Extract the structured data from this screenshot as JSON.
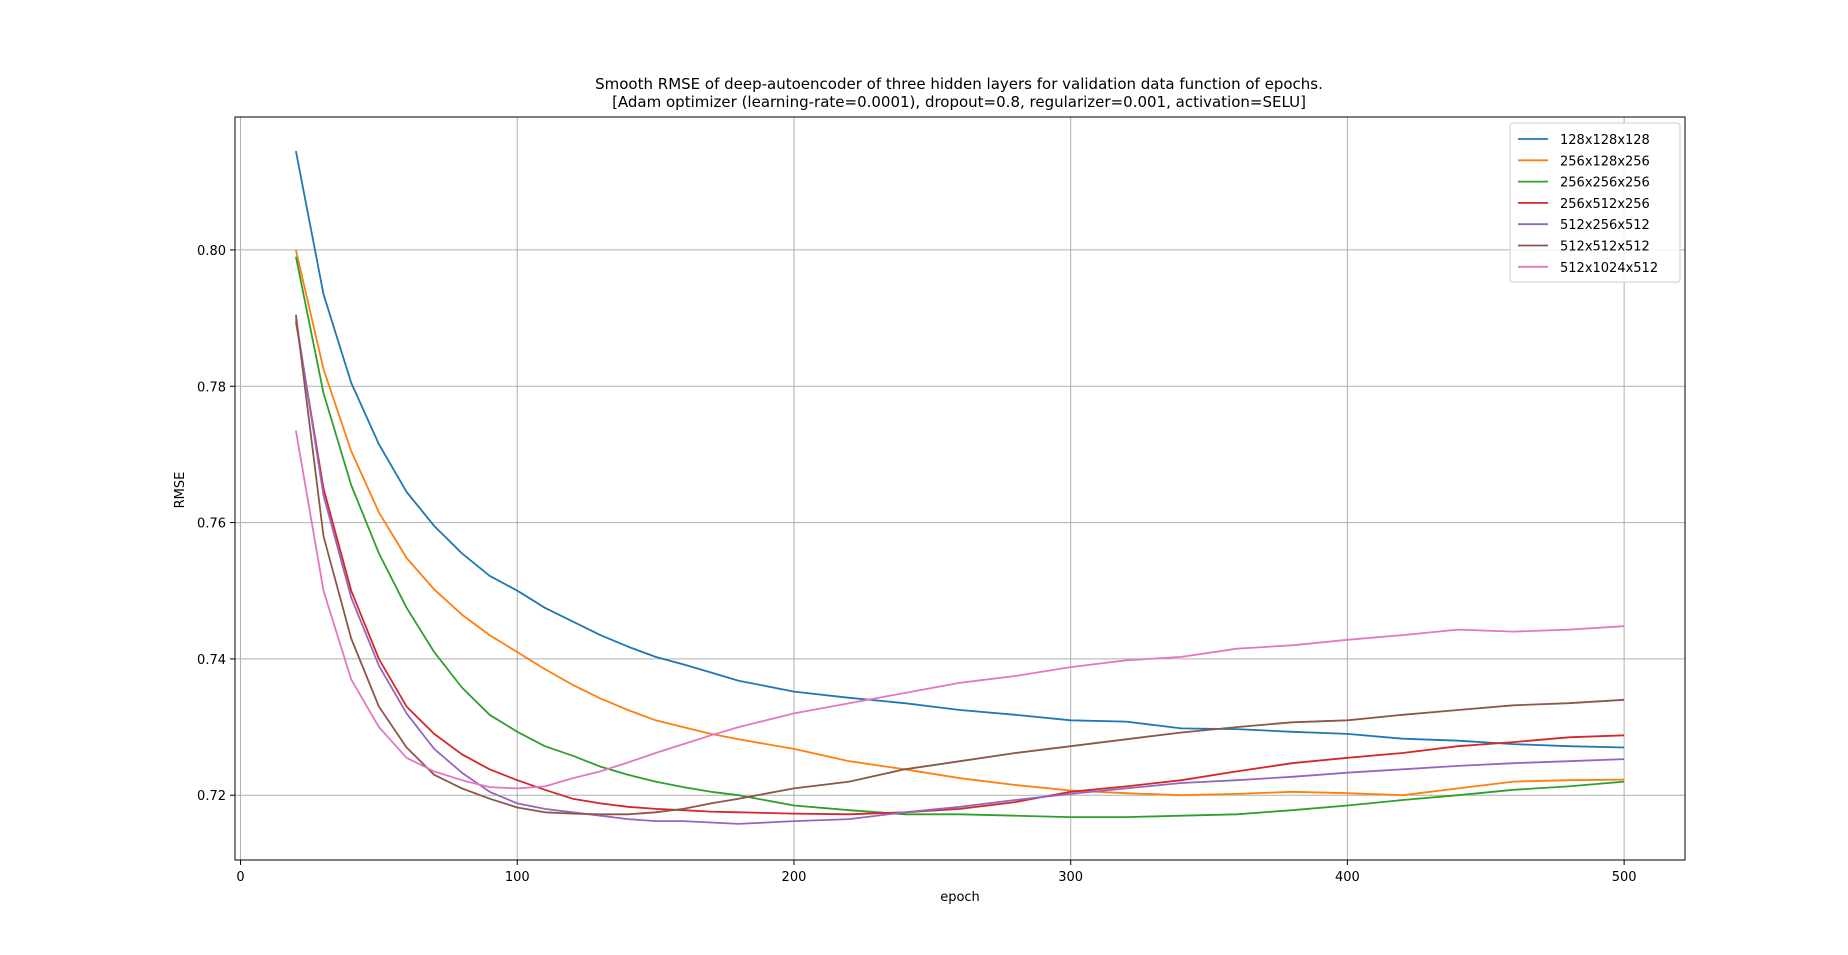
{
  "chart_data": {
    "type": "line",
    "title": "Smooth RMSE of deep-autoencoder of three hidden layers for validation data function of epochs.",
    "subtitle": "[Adam optimizer (learning-rate=0.0001), dropout=0.8, regularizer=0.001, activation=SELU]",
    "xlabel": "epoch",
    "ylabel": "RMSE",
    "xlim": [
      -2,
      522
    ],
    "ylim": [
      0.7105,
      0.8195
    ],
    "xticks": [
      0,
      100,
      200,
      300,
      400,
      500
    ],
    "yticks": [
      0.72,
      0.74,
      0.76,
      0.78,
      0.8
    ],
    "ytick_labels": [
      "0.72",
      "0.74",
      "0.76",
      "0.78",
      "0.80"
    ],
    "grid": true,
    "legend_position": "top-right",
    "series": [
      {
        "name": "128x128x128",
        "color": "#1f77b4",
        "x": [
          20,
          30,
          40,
          50,
          60,
          70,
          80,
          90,
          100,
          110,
          120,
          130,
          140,
          150,
          160,
          170,
          180,
          200,
          220,
          240,
          260,
          280,
          300,
          320,
          340,
          360,
          380,
          400,
          420,
          440,
          460,
          480,
          500
        ],
        "y": [
          0.8145,
          0.7935,
          0.7805,
          0.7715,
          0.7645,
          0.7595,
          0.7555,
          0.7522,
          0.75,
          0.7475,
          0.7455,
          0.7435,
          0.7418,
          0.7403,
          0.7392,
          0.738,
          0.7368,
          0.7352,
          0.7343,
          0.7335,
          0.7325,
          0.7318,
          0.731,
          0.7308,
          0.7298,
          0.7297,
          0.7293,
          0.729,
          0.7283,
          0.728,
          0.7275,
          0.7272,
          0.727
        ]
      },
      {
        "name": "256x128x256",
        "color": "#ff7f0e",
        "x": [
          20,
          30,
          40,
          50,
          60,
          70,
          80,
          90,
          100,
          110,
          120,
          130,
          140,
          150,
          160,
          170,
          180,
          200,
          220,
          240,
          260,
          280,
          300,
          320,
          340,
          360,
          380,
          400,
          420,
          440,
          460,
          480,
          500
        ],
        "y": [
          0.8,
          0.7825,
          0.7705,
          0.7615,
          0.7548,
          0.7502,
          0.7465,
          0.7435,
          0.741,
          0.7385,
          0.7362,
          0.7342,
          0.7325,
          0.731,
          0.73,
          0.729,
          0.7282,
          0.7268,
          0.725,
          0.7238,
          0.7225,
          0.7215,
          0.7207,
          0.7203,
          0.72,
          0.7202,
          0.7205,
          0.7203,
          0.72,
          0.721,
          0.722,
          0.7222,
          0.7223
        ]
      },
      {
        "name": "256x256x256",
        "color": "#2ca02c",
        "x": [
          20,
          30,
          40,
          50,
          60,
          70,
          80,
          90,
          100,
          110,
          120,
          130,
          140,
          150,
          160,
          170,
          180,
          200,
          220,
          240,
          260,
          280,
          300,
          320,
          340,
          360,
          380,
          400,
          420,
          440,
          460,
          480,
          500
        ],
        "y": [
          0.799,
          0.779,
          0.7655,
          0.7555,
          0.7475,
          0.741,
          0.7358,
          0.7318,
          0.7293,
          0.7272,
          0.7258,
          0.7242,
          0.723,
          0.722,
          0.7212,
          0.7205,
          0.72,
          0.7185,
          0.7178,
          0.7172,
          0.7172,
          0.717,
          0.7168,
          0.7168,
          0.717,
          0.7172,
          0.7178,
          0.7185,
          0.7193,
          0.72,
          0.7208,
          0.7213,
          0.722
        ]
      },
      {
        "name": "256x512x256",
        "color": "#d62728",
        "x": [
          20,
          30,
          40,
          50,
          60,
          70,
          80,
          90,
          100,
          110,
          120,
          130,
          140,
          150,
          160,
          170,
          180,
          200,
          220,
          240,
          260,
          280,
          300,
          320,
          340,
          360,
          380,
          400,
          420,
          440,
          460,
          480,
          500
        ],
        "y": [
          0.7895,
          0.765,
          0.75,
          0.74,
          0.733,
          0.729,
          0.726,
          0.7238,
          0.7222,
          0.7208,
          0.7195,
          0.7188,
          0.7183,
          0.718,
          0.7178,
          0.7176,
          0.7175,
          0.7173,
          0.7172,
          0.7175,
          0.718,
          0.719,
          0.7205,
          0.7213,
          0.7222,
          0.7235,
          0.7247,
          0.7255,
          0.7262,
          0.7272,
          0.7278,
          0.7285,
          0.7288
        ]
      },
      {
        "name": "512x256x512",
        "color": "#9467bd",
        "x": [
          20,
          30,
          40,
          50,
          60,
          70,
          80,
          90,
          100,
          110,
          120,
          130,
          140,
          150,
          160,
          170,
          180,
          200,
          220,
          240,
          260,
          280,
          300,
          320,
          340,
          360,
          380,
          400,
          420,
          440,
          460,
          480,
          500
        ],
        "y": [
          0.79,
          0.764,
          0.749,
          0.739,
          0.732,
          0.7268,
          0.7233,
          0.7205,
          0.7188,
          0.718,
          0.7175,
          0.717,
          0.7165,
          0.7162,
          0.7162,
          0.716,
          0.7158,
          0.7162,
          0.7165,
          0.7175,
          0.7183,
          0.7193,
          0.7202,
          0.721,
          0.7218,
          0.7222,
          0.7227,
          0.7233,
          0.7238,
          0.7243,
          0.7247,
          0.725,
          0.7253
        ]
      },
      {
        "name": "512x512x512",
        "color": "#8c564b",
        "x": [
          20,
          30,
          40,
          50,
          60,
          70,
          80,
          90,
          100,
          110,
          120,
          130,
          140,
          150,
          160,
          170,
          180,
          200,
          220,
          240,
          260,
          280,
          300,
          320,
          340,
          360,
          380,
          400,
          420,
          440,
          460,
          480,
          500
        ],
        "y": [
          0.7905,
          0.758,
          0.743,
          0.733,
          0.727,
          0.723,
          0.721,
          0.7195,
          0.7182,
          0.7175,
          0.7173,
          0.7172,
          0.7172,
          0.7175,
          0.718,
          0.7188,
          0.7195,
          0.721,
          0.722,
          0.7238,
          0.725,
          0.7262,
          0.7272,
          0.7282,
          0.7292,
          0.73,
          0.7307,
          0.731,
          0.7318,
          0.7325,
          0.7332,
          0.7335,
          0.734
        ]
      },
      {
        "name": "512x1024x512",
        "color": "#e377c2",
        "x": [
          20,
          30,
          40,
          50,
          60,
          70,
          80,
          90,
          100,
          110,
          120,
          130,
          140,
          150,
          160,
          170,
          180,
          200,
          220,
          240,
          260,
          280,
          300,
          320,
          340,
          360,
          380,
          400,
          420,
          440,
          460,
          480,
          500
        ],
        "y": [
          0.7735,
          0.75,
          0.737,
          0.73,
          0.7255,
          0.7235,
          0.7222,
          0.7212,
          0.721,
          0.7213,
          0.7225,
          0.7235,
          0.7248,
          0.7262,
          0.7275,
          0.7288,
          0.73,
          0.732,
          0.7335,
          0.735,
          0.7365,
          0.7375,
          0.7388,
          0.7398,
          0.7403,
          0.7415,
          0.742,
          0.7428,
          0.7435,
          0.7443,
          0.744,
          0.7443,
          0.7448
        ]
      }
    ]
  }
}
